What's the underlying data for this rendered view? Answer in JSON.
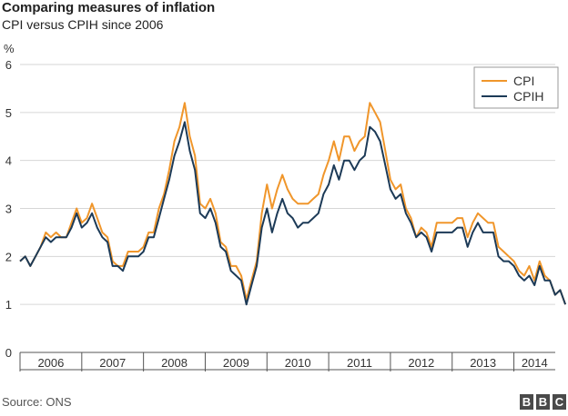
{
  "header": {
    "title": "Comparing measures of inflation",
    "subtitle": "CPI versus CPIH since 2006"
  },
  "footer": {
    "source": "Source: ONS",
    "logo_letters": [
      "B",
      "B",
      "C"
    ]
  },
  "colors": {
    "cpi": "#f0962b",
    "cpih": "#1c3a57",
    "grid": "#d6d6d6",
    "axis": "#555555",
    "text": "#333333"
  },
  "chart_data": {
    "type": "line",
    "title": "Comparing measures of inflation",
    "subtitle": "CPI versus CPIH since 2006",
    "ylabel": "%",
    "xlabel": "",
    "ylim": [
      0,
      6
    ],
    "yticks": [
      "0",
      "1",
      "2",
      "3",
      "4",
      "5",
      "6"
    ],
    "xlim": [
      2006.0,
      2014.67
    ],
    "xtick_labels": [
      "2006",
      "2007",
      "2008",
      "2009",
      "2010",
      "2011",
      "2012",
      "2013",
      "2014"
    ],
    "grid": "horizontal",
    "legend_position": "top-right",
    "series": [
      {
        "name": "CPI",
        "x_start": "2006-01",
        "frequency": "monthly",
        "values": [
          1.9,
          2.0,
          1.8,
          2.0,
          2.2,
          2.5,
          2.4,
          2.5,
          2.4,
          2.4,
          2.7,
          3.0,
          2.7,
          2.8,
          3.1,
          2.8,
          2.5,
          2.4,
          1.9,
          1.8,
          1.8,
          2.1,
          2.1,
          2.1,
          2.2,
          2.5,
          2.5,
          3.0,
          3.3,
          3.8,
          4.4,
          4.7,
          5.2,
          4.5,
          4.1,
          3.1,
          3.0,
          3.2,
          2.9,
          2.3,
          2.2,
          1.8,
          1.8,
          1.6,
          1.1,
          1.5,
          1.9,
          2.9,
          3.5,
          3.0,
          3.4,
          3.7,
          3.4,
          3.2,
          3.1,
          3.1,
          3.1,
          3.2,
          3.3,
          3.7,
          4.0,
          4.4,
          4.0,
          4.5,
          4.5,
          4.2,
          4.4,
          4.5,
          5.2,
          5.0,
          4.8,
          4.2,
          3.6,
          3.4,
          3.5,
          3.0,
          2.8,
          2.4,
          2.6,
          2.5,
          2.2,
          2.7,
          2.7,
          2.7,
          2.7,
          2.8,
          2.8,
          2.4,
          2.7,
          2.9,
          2.8,
          2.7,
          2.7,
          2.2,
          2.1,
          2.0,
          1.9,
          1.7,
          1.6,
          1.8,
          1.5,
          1.9,
          1.6,
          1.5,
          1.2,
          1.3,
          1.0
        ]
      },
      {
        "name": "CPIH",
        "x_start": "2006-01",
        "frequency": "monthly",
        "values": [
          1.9,
          2.0,
          1.8,
          2.0,
          2.2,
          2.4,
          2.3,
          2.4,
          2.4,
          2.4,
          2.6,
          2.9,
          2.6,
          2.7,
          2.9,
          2.6,
          2.4,
          2.3,
          1.8,
          1.8,
          1.7,
          2.0,
          2.0,
          2.0,
          2.1,
          2.4,
          2.4,
          2.8,
          3.2,
          3.6,
          4.1,
          4.4,
          4.8,
          4.2,
          3.8,
          2.9,
          2.8,
          3.0,
          2.7,
          2.2,
          2.1,
          1.7,
          1.6,
          1.5,
          1.0,
          1.4,
          1.8,
          2.6,
          3.0,
          2.5,
          2.9,
          3.2,
          2.9,
          2.8,
          2.6,
          2.7,
          2.7,
          2.8,
          2.9,
          3.3,
          3.5,
          3.9,
          3.6,
          4.0,
          4.0,
          3.8,
          4.0,
          4.1,
          4.7,
          4.6,
          4.4,
          3.9,
          3.4,
          3.2,
          3.3,
          2.9,
          2.7,
          2.4,
          2.5,
          2.4,
          2.1,
          2.5,
          2.5,
          2.5,
          2.5,
          2.6,
          2.6,
          2.2,
          2.5,
          2.7,
          2.5,
          2.5,
          2.5,
          2.0,
          1.9,
          1.9,
          1.8,
          1.6,
          1.5,
          1.6,
          1.4,
          1.8,
          1.5,
          1.5,
          1.2,
          1.3,
          1.0
        ]
      }
    ]
  }
}
